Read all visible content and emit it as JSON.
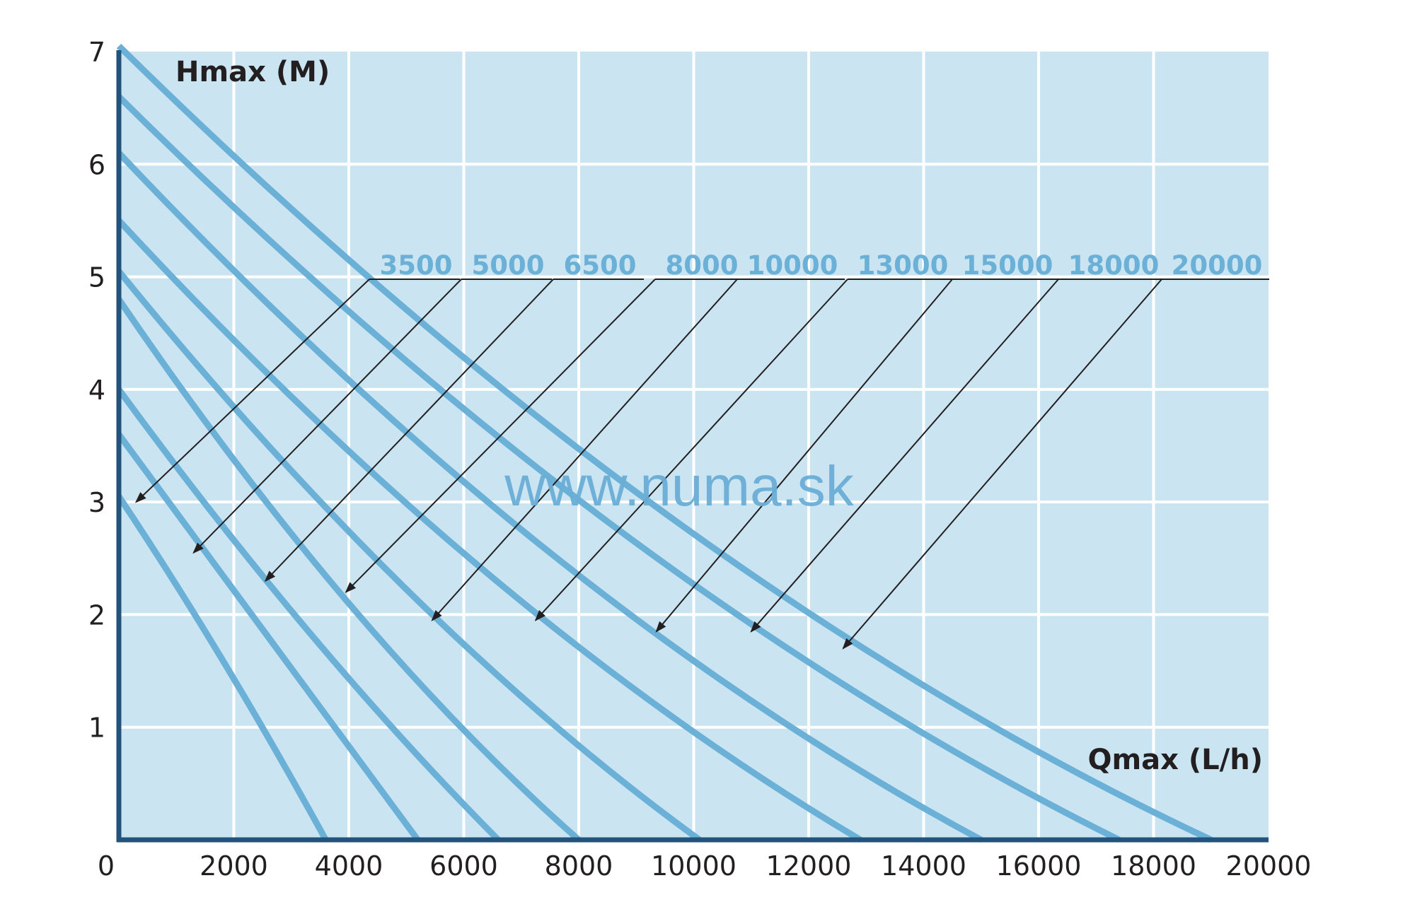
{
  "chart_data": {
    "type": "line",
    "xlabel": "Qmax (L/h)",
    "ylabel": "Hmax (M)",
    "xlim": [
      0,
      20000
    ],
    "ylim": [
      0,
      7
    ],
    "x_ticks": [
      "0",
      "2000",
      "4000",
      "6000",
      "8000",
      "10000",
      "12000",
      "14000",
      "16000",
      "18000",
      "20000"
    ],
    "y_ticks": [
      "1",
      "2",
      "3",
      "4",
      "5",
      "6",
      "7"
    ],
    "grid": true,
    "watermark": "www.numa.sk",
    "colors": {
      "background": "#cae4f2",
      "series": "#6bb0d6",
      "axis": "#23527a",
      "grid": "#ffffff"
    },
    "series": [
      {
        "name": "3500",
        "hmax": 3.05,
        "qmax": 3600,
        "points": [
          [
            0,
            3.05
          ],
          [
            1800,
            1.6
          ],
          [
            3600,
            0
          ]
        ],
        "label_at": [
          300,
          3.0
        ]
      },
      {
        "name": "5000",
        "hmax": 3.6,
        "qmax": 5200,
        "points": [
          [
            0,
            3.6
          ],
          [
            2600,
            1.8
          ],
          [
            5200,
            0
          ]
        ],
        "label_at": [
          1300,
          2.55
        ]
      },
      {
        "name": "6500",
        "hmax": 4.0,
        "qmax": 6600,
        "points": [
          [
            0,
            4.0
          ],
          [
            3300,
            1.85
          ],
          [
            6600,
            0
          ]
        ],
        "label_at": [
          2550,
          2.3
        ]
      },
      {
        "name": "8000",
        "hmax": 4.8,
        "qmax": 8000,
        "points": [
          [
            0,
            4.8
          ],
          [
            4000,
            2.1
          ],
          [
            8000,
            0
          ]
        ],
        "label_at": [
          3950,
          2.2
        ]
      },
      {
        "name": "10000",
        "hmax": 5.05,
        "qmax": 10100,
        "points": [
          [
            0,
            5.05
          ],
          [
            5050,
            2.2
          ],
          [
            10100,
            0
          ]
        ],
        "label_at": [
          5450,
          1.95
        ]
      },
      {
        "name": "13000",
        "hmax": 5.5,
        "qmax": 12900,
        "points": [
          [
            0,
            5.5
          ],
          [
            6450,
            2.35
          ],
          [
            12900,
            0
          ]
        ],
        "label_at": [
          7250,
          1.95
        ]
      },
      {
        "name": "15000",
        "hmax": 6.1,
        "qmax": 15000,
        "points": [
          [
            0,
            6.1
          ],
          [
            7500,
            2.55
          ],
          [
            15000,
            0
          ]
        ],
        "label_at": [
          9350,
          1.85
        ]
      },
      {
        "name": "18000",
        "hmax": 6.6,
        "qmax": 17400,
        "points": [
          [
            0,
            6.6
          ],
          [
            8700,
            2.75
          ],
          [
            17400,
            0
          ]
        ],
        "label_at": [
          11000,
          1.85
        ]
      },
      {
        "name": "20000",
        "hmax": 7.05,
        "qmax": 19000,
        "points": [
          [
            0,
            7.05
          ],
          [
            9500,
            2.9
          ],
          [
            19000,
            0
          ]
        ],
        "label_at": [
          12600,
          1.7
        ]
      }
    ]
  }
}
